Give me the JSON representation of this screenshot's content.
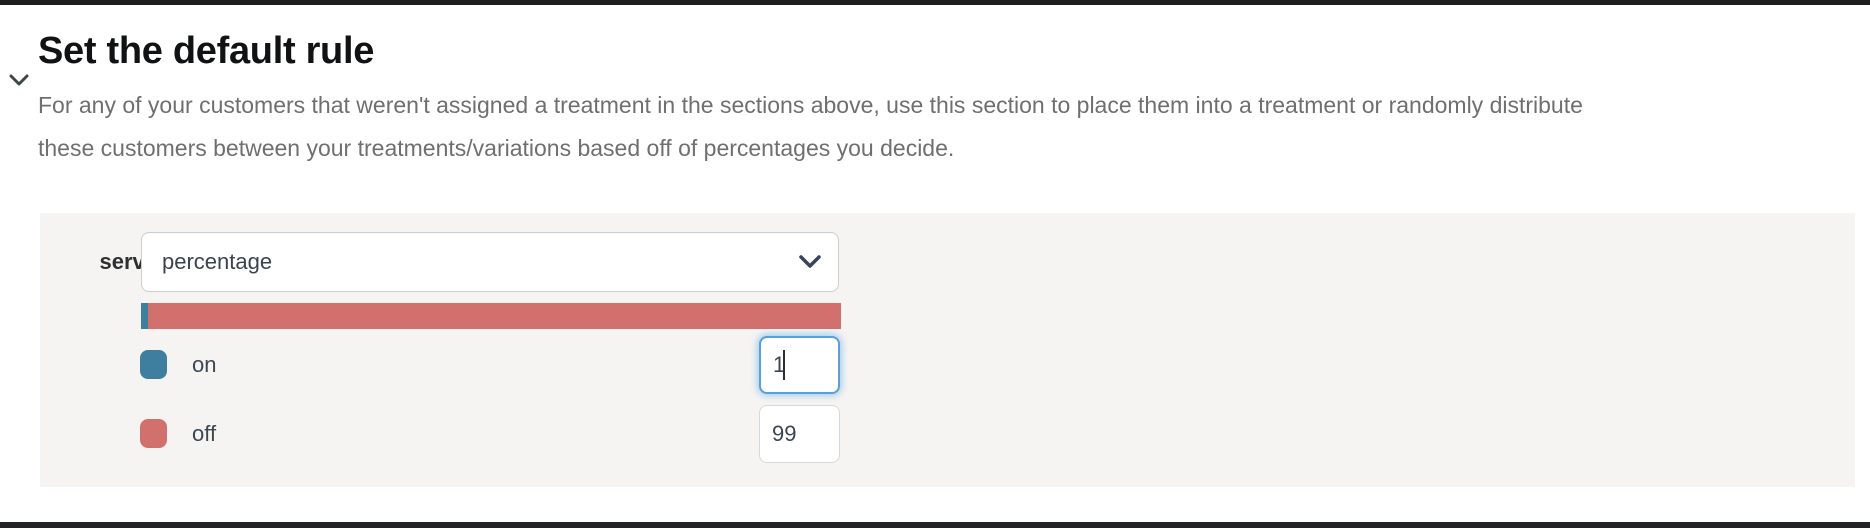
{
  "page": {
    "top_rule_color": "#1c1e1f",
    "bottom_rule_color": "#232526"
  },
  "section": {
    "title": "Set the default rule",
    "description_lines": [
      "For any of your customers that weren't assigned a treatment in the sections above, use this section to place them into a treatment or randomly distribute",
      "these customers between your treatments/variations based off of percentages you decide."
    ]
  },
  "default_rule": {
    "serve_label": "serve",
    "serve_select": {
      "value": "percentage",
      "chevron_icon": "chevron-down-icon"
    },
    "distribution_bar": {
      "segments": [
        {
          "name": "on",
          "color": "#3e7e9e",
          "percent": 1
        },
        {
          "name": "off",
          "color": "#d2706d",
          "percent": 99
        }
      ]
    },
    "treatments": [
      {
        "label": "on",
        "color": "#3e7e9e",
        "value": "1",
        "focused": true
      },
      {
        "label": "off",
        "color": "#d2706d",
        "value": "99",
        "focused": false
      }
    ]
  }
}
